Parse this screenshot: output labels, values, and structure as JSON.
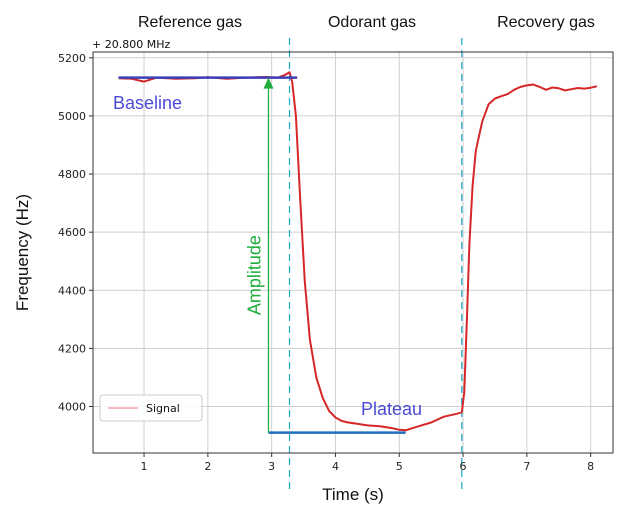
{
  "chart_data": {
    "type": "line",
    "xlabel": "Time (s)",
    "ylabel": "Frequency (Hz)",
    "y_offset_label": "+ 20.800 MHz",
    "xlim": [
      0.2,
      8.35
    ],
    "ylim": [
      3840,
      5220
    ],
    "xticks": [
      1,
      2,
      3,
      4,
      5,
      6,
      7,
      8
    ],
    "yticks": [
      4000,
      4200,
      4400,
      4600,
      4800,
      5000,
      5200
    ],
    "grid": true,
    "legend_position": "lower-left",
    "series": [
      {
        "name": "Signal",
        "color": "#d62728",
        "x": [
          0.6,
          0.8,
          1.0,
          1.2,
          1.5,
          1.8,
          2.0,
          2.3,
          2.6,
          2.9,
          3.1,
          3.2,
          3.28,
          3.32,
          3.38,
          3.45,
          3.52,
          3.6,
          3.7,
          3.8,
          3.9,
          4.0,
          4.1,
          4.2,
          4.3,
          4.5,
          4.7,
          4.9,
          5.0,
          5.1,
          5.3,
          5.5,
          5.7,
          5.9,
          5.98,
          6.02,
          6.06,
          6.1,
          6.15,
          6.2,
          6.3,
          6.4,
          6.5,
          6.6,
          6.7,
          6.8,
          6.9,
          7.0,
          7.1,
          7.2,
          7.3,
          7.4,
          7.5,
          7.6,
          7.7,
          7.8,
          7.9,
          8.0,
          8.1
        ],
        "y": [
          5130,
          5128,
          5118,
          5132,
          5128,
          5130,
          5133,
          5128,
          5132,
          5134,
          5132,
          5140,
          5150,
          5120,
          5000,
          4700,
          4430,
          4230,
          4100,
          4030,
          3985,
          3962,
          3950,
          3945,
          3942,
          3935,
          3932,
          3925,
          3920,
          3918,
          3932,
          3945,
          3965,
          3975,
          3980,
          4050,
          4300,
          4560,
          4760,
          4880,
          4980,
          5040,
          5060,
          5068,
          5075,
          5090,
          5100,
          5105,
          5108,
          5100,
          5090,
          5098,
          5095,
          5088,
          5092,
          5096,
          5094,
          5097,
          5102
        ]
      }
    ],
    "phase_boundaries": [
      3.28,
      5.98
    ],
    "phase_labels": [
      "Reference gas",
      "Odorant gas",
      "Recovery gas"
    ],
    "annotations": {
      "baseline": {
        "text": "Baseline",
        "x": [
          0.6,
          3.4
        ],
        "y": 5132
      },
      "plateau": {
        "text": "Plateau",
        "x": [
          2.95,
          5.1
        ],
        "y": 3910
      },
      "amplitude": {
        "text": "Amplitude",
        "x": 2.95,
        "y": [
          3910,
          5132
        ]
      }
    }
  }
}
